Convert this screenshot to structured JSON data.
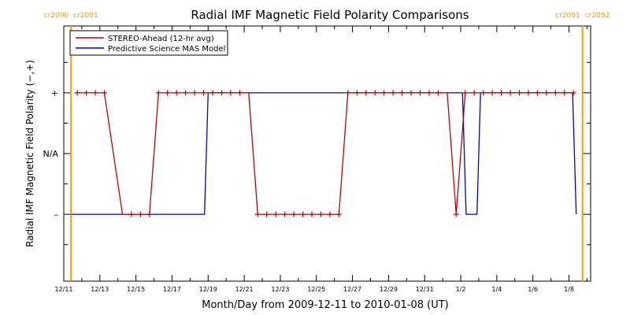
{
  "chart_data": {
    "type": "line",
    "title": "Radial IMF Magnetic Field Polarity Comparisons",
    "xlabel": "Month/Day from 2009-12-11 to 2010-01-08 (UT)",
    "ylabel": "Radial IMF Magnetic Field Polarity (−,+)",
    "x_ticks": [
      "12/11",
      "12/13",
      "12/15",
      "12/17",
      "12/19",
      "12/21",
      "12/23",
      "12/25",
      "12/27",
      "12/29",
      "12/31",
      "1/2",
      "1/4",
      "1/6",
      "1/8"
    ],
    "x_tick_days": [
      0,
      2,
      4,
      6,
      8,
      10,
      12,
      14,
      16,
      18,
      20,
      22,
      24,
      26,
      28
    ],
    "xlim": [
      0,
      29.2
    ],
    "y_ticks": [
      "+",
      "N/A",
      "–"
    ],
    "y_tick_values": [
      1,
      0,
      -1
    ],
    "ylim": [
      -2.1,
      2.1
    ],
    "rotation_markers": [
      {
        "day": 0.4,
        "left_label": "cr2090",
        "right_label": "cr2091"
      },
      {
        "day": 28.75,
        "left_label": "cr2091",
        "right_label": "cr2092"
      }
    ],
    "marker_color": "#ff9a00",
    "legend": {
      "position": "top-left"
    },
    "series": [
      {
        "name": "STEREO-Ahead (12-hr avg)",
        "color": "#c00000",
        "points": [
          [
            0.75,
            1
          ],
          [
            1.25,
            1
          ],
          [
            1.75,
            1
          ],
          [
            2.25,
            1
          ],
          [
            3.25,
            -1
          ],
          [
            3.75,
            -1
          ],
          [
            4.25,
            -1
          ],
          [
            4.75,
            -1
          ],
          [
            5.25,
            1
          ],
          [
            5.75,
            1
          ],
          [
            6.25,
            1
          ],
          [
            6.75,
            1
          ],
          [
            7.25,
            1
          ],
          [
            7.75,
            1
          ],
          [
            8.25,
            1
          ],
          [
            8.75,
            1
          ],
          [
            9.25,
            1
          ],
          [
            9.75,
            1
          ],
          [
            10.25,
            1
          ],
          [
            10.75,
            -1
          ],
          [
            11.25,
            -1
          ],
          [
            11.75,
            -1
          ],
          [
            12.25,
            -1
          ],
          [
            12.75,
            -1
          ],
          [
            13.25,
            -1
          ],
          [
            13.75,
            -1
          ],
          [
            14.25,
            -1
          ],
          [
            14.75,
            -1
          ],
          [
            15.25,
            -1
          ],
          [
            15.75,
            1
          ],
          [
            16.25,
            1
          ],
          [
            16.75,
            1
          ],
          [
            17.25,
            1
          ],
          [
            17.75,
            1
          ],
          [
            18.25,
            1
          ],
          [
            18.75,
            1
          ],
          [
            19.25,
            1
          ],
          [
            19.75,
            1
          ],
          [
            20.25,
            1
          ],
          [
            20.75,
            1
          ],
          [
            21.25,
            1
          ],
          [
            21.75,
            -1
          ],
          [
            22.25,
            1
          ],
          [
            22.75,
            1
          ],
          [
            23.25,
            1
          ],
          [
            23.75,
            1
          ],
          [
            24.25,
            1
          ],
          [
            24.75,
            1
          ],
          [
            25.25,
            1
          ],
          [
            25.75,
            1
          ],
          [
            26.25,
            1
          ],
          [
            26.75,
            1
          ],
          [
            27.25,
            1
          ],
          [
            27.75,
            1
          ],
          [
            28.25,
            1
          ]
        ],
        "markers": [
          [
            0.75,
            1
          ],
          [
            1.25,
            1
          ],
          [
            1.75,
            1
          ],
          [
            2.25,
            1
          ],
          [
            3.75,
            -1
          ],
          [
            4.25,
            -1
          ],
          [
            4.75,
            -1
          ],
          [
            5.25,
            1
          ],
          [
            5.75,
            1
          ],
          [
            6.25,
            1
          ],
          [
            6.75,
            1
          ],
          [
            7.25,
            1
          ],
          [
            7.75,
            1
          ],
          [
            8.25,
            1
          ],
          [
            8.75,
            1
          ],
          [
            9.25,
            1
          ],
          [
            9.75,
            1
          ],
          [
            10.75,
            -1
          ],
          [
            11.25,
            -1
          ],
          [
            11.75,
            -1
          ],
          [
            12.25,
            -1
          ],
          [
            12.75,
            -1
          ],
          [
            13.25,
            -1
          ],
          [
            13.75,
            -1
          ],
          [
            14.25,
            -1
          ],
          [
            14.75,
            -1
          ],
          [
            15.25,
            -1
          ],
          [
            15.75,
            1
          ],
          [
            16.25,
            1
          ],
          [
            16.75,
            1
          ],
          [
            17.25,
            1
          ],
          [
            17.75,
            1
          ],
          [
            18.25,
            1
          ],
          [
            18.75,
            1
          ],
          [
            19.25,
            1
          ],
          [
            19.75,
            1
          ],
          [
            20.25,
            1
          ],
          [
            20.75,
            1
          ],
          [
            21.75,
            -1
          ],
          [
            22.25,
            1
          ],
          [
            22.75,
            1
          ],
          [
            23.25,
            1
          ],
          [
            23.75,
            1
          ],
          [
            24.25,
            1
          ],
          [
            24.75,
            1
          ],
          [
            25.25,
            1
          ],
          [
            25.75,
            1
          ],
          [
            26.25,
            1
          ],
          [
            26.75,
            1
          ],
          [
            27.25,
            1
          ],
          [
            27.75,
            1
          ],
          [
            28.25,
            1
          ]
        ]
      },
      {
        "name": "Predictive Science MAS Model",
        "color": "#0000c8",
        "points": [
          [
            0.4,
            -1
          ],
          [
            7.8,
            -1
          ],
          [
            8.0,
            1
          ],
          [
            22.1,
            1
          ],
          [
            22.3,
            -1
          ],
          [
            22.9,
            -1
          ],
          [
            23.1,
            1
          ],
          [
            28.2,
            1
          ],
          [
            28.4,
            -1
          ]
        ]
      }
    ]
  }
}
